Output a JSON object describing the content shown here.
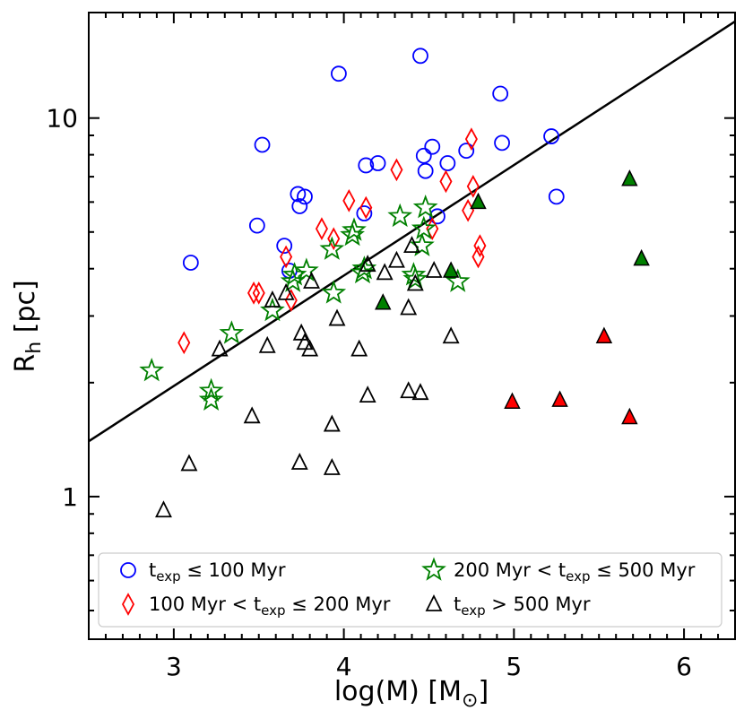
{
  "chart_data": {
    "type": "scatter",
    "title": "",
    "xlabel": "log(M) [M⊙]",
    "xlabel_main": "log(M) [M",
    "xlabel_sub": "⊙",
    "xlabel_close": "]",
    "ylabel_main": "R",
    "ylabel_sub": "h",
    "ylabel_rest": " [pc]",
    "xlim": [
      2.5,
      6.3
    ],
    "ylim": [
      0.42,
      19.0
    ],
    "yscale": "log",
    "xticks": [
      3,
      4,
      5,
      6
    ],
    "xtick_labels": [
      "3",
      "4",
      "5",
      "6"
    ],
    "yticks": [
      1,
      10
    ],
    "ytick_labels": [
      "1",
      "10"
    ],
    "fit_line": {
      "x": [
        2.5,
        6.3
      ],
      "y": [
        1.4,
        18.0
      ]
    },
    "series": [
      {
        "name": "t_exp <= 100 Myr",
        "marker": "circle",
        "color": "#0000ff",
        "filled": false,
        "points": [
          [
            3.1,
            4.15
          ],
          [
            3.49,
            5.2
          ],
          [
            3.52,
            8.5
          ],
          [
            3.65,
            4.6
          ],
          [
            3.68,
            3.95
          ],
          [
            3.73,
            6.3
          ],
          [
            3.74,
            5.85
          ],
          [
            3.77,
            6.2
          ],
          [
            3.97,
            13.1
          ],
          [
            4.13,
            7.5
          ],
          [
            4.12,
            5.6
          ],
          [
            4.2,
            7.6
          ],
          [
            4.45,
            14.6
          ],
          [
            4.47,
            7.95
          ],
          [
            4.48,
            7.25
          ],
          [
            4.52,
            8.4
          ],
          [
            4.55,
            5.5
          ],
          [
            4.61,
            7.6
          ],
          [
            4.72,
            8.2
          ],
          [
            4.92,
            11.6
          ],
          [
            4.93,
            8.6
          ],
          [
            5.22,
            8.95
          ],
          [
            5.25,
            6.2
          ]
        ]
      },
      {
        "name": "100 Myr < t_exp <= 200 Myr",
        "marker": "diamond",
        "color": "#ff0000",
        "filled": false,
        "points": [
          [
            3.06,
            2.55
          ],
          [
            3.47,
            3.45
          ],
          [
            3.5,
            3.45
          ],
          [
            3.66,
            4.3
          ],
          [
            3.69,
            3.3
          ],
          [
            3.87,
            5.1
          ],
          [
            3.94,
            4.8
          ],
          [
            4.03,
            6.05
          ],
          [
            4.13,
            5.8
          ],
          [
            4.31,
            7.3
          ],
          [
            4.52,
            5.1
          ],
          [
            4.6,
            6.8
          ],
          [
            4.73,
            5.7
          ],
          [
            4.75,
            8.8
          ],
          [
            4.76,
            6.6
          ],
          [
            4.79,
            4.3
          ],
          [
            4.8,
            4.6
          ]
        ]
      },
      {
        "name": "200 Myr < t_exp <= 500 Myr",
        "marker": "star",
        "color": "#008000",
        "filled": false,
        "points": [
          [
            2.87,
            2.15
          ],
          [
            3.22,
            1.9
          ],
          [
            3.22,
            1.8
          ],
          [
            3.34,
            2.7
          ],
          [
            3.58,
            3.1
          ],
          [
            3.7,
            3.7
          ],
          [
            3.71,
            3.85
          ],
          [
            3.78,
            3.95
          ],
          [
            3.93,
            4.5
          ],
          [
            3.94,
            3.45
          ],
          [
            4.05,
            4.9
          ],
          [
            4.06,
            5.05
          ],
          [
            4.11,
            3.9
          ],
          [
            4.12,
            4.0
          ],
          [
            4.33,
            5.5
          ],
          [
            4.41,
            3.85
          ],
          [
            4.42,
            3.75
          ],
          [
            4.46,
            4.6
          ],
          [
            4.47,
            5.1
          ],
          [
            4.48,
            5.8
          ],
          [
            4.67,
            3.7
          ]
        ]
      },
      {
        "name": "t_exp > 500 Myr",
        "marker": "triangle",
        "color": "#000000",
        "filled": false,
        "points": [
          [
            2.94,
            0.92
          ],
          [
            3.09,
            1.22
          ],
          [
            3.27,
            2.45
          ],
          [
            3.46,
            1.63
          ],
          [
            3.55,
            2.5
          ],
          [
            3.58,
            3.3
          ],
          [
            3.66,
            3.45
          ],
          [
            3.74,
            1.23
          ],
          [
            3.75,
            2.7
          ],
          [
            3.77,
            2.55
          ],
          [
            3.8,
            2.45
          ],
          [
            3.81,
            3.7
          ],
          [
            3.93,
            1.55
          ],
          [
            3.93,
            1.19
          ],
          [
            3.96,
            2.95
          ],
          [
            4.09,
            2.45
          ],
          [
            4.14,
            1.85
          ],
          [
            4.14,
            4.1
          ],
          [
            4.24,
            3.9
          ],
          [
            4.31,
            4.2
          ],
          [
            4.38,
            1.9
          ],
          [
            4.38,
            3.15
          ],
          [
            4.4,
            4.6
          ],
          [
            4.42,
            3.65
          ],
          [
            4.45,
            1.88
          ],
          [
            4.53,
            3.95
          ],
          [
            4.63,
            2.65
          ]
        ]
      },
      {
        "name": "green filled",
        "marker": "triangle",
        "color": "#008000",
        "filled": true,
        "points": [
          [
            4.23,
            3.25
          ],
          [
            4.63,
            3.95
          ],
          [
            4.79,
            6.0
          ],
          [
            5.68,
            6.9
          ],
          [
            5.75,
            4.25
          ]
        ]
      },
      {
        "name": "red filled",
        "marker": "triangle",
        "color": "#ff0000",
        "filled": true,
        "points": [
          [
            4.99,
            1.78
          ],
          [
            5.27,
            1.8
          ],
          [
            5.53,
            2.65
          ],
          [
            5.68,
            1.62
          ]
        ]
      }
    ],
    "legend": {
      "location": "lower-center",
      "entries": [
        {
          "marker": "circle",
          "color": "#0000ff",
          "main": "t",
          "sub": "exp",
          "rest": " ≤ 100 Myr"
        },
        {
          "marker": "star",
          "color": "#008000",
          "prefix": "200 Myr < t",
          "sub": "exp",
          "rest": " ≤ 500 Myr"
        },
        {
          "marker": "diamond",
          "color": "#ff0000",
          "prefix": "100 Myr < t",
          "sub": "exp",
          "rest": " ≤ 200 Myr"
        },
        {
          "marker": "triangle",
          "color": "#000000",
          "main": "t",
          "sub": "exp",
          "rest": " > 500 Myr"
        }
      ]
    }
  }
}
